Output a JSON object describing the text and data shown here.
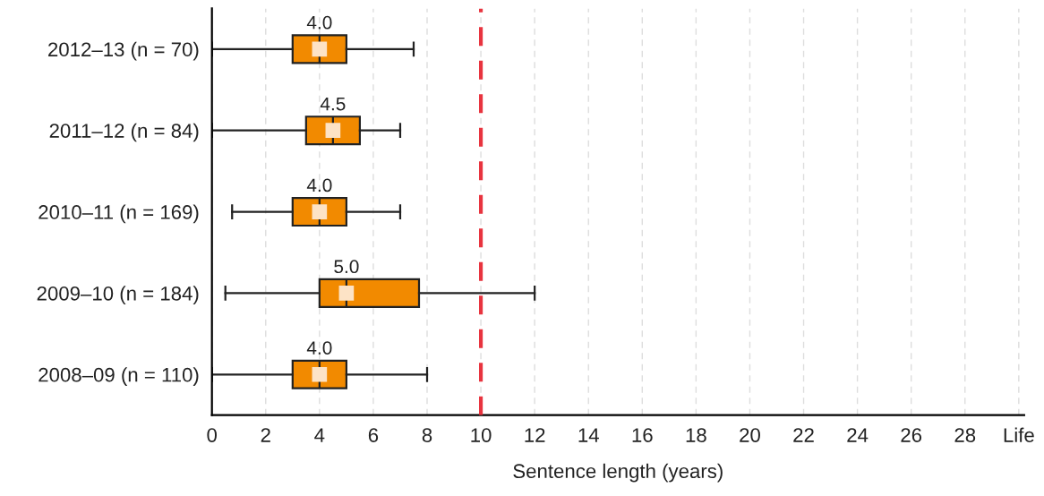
{
  "chart_data": {
    "type": "box",
    "orientation": "horizontal",
    "xlabel": "Sentence length (years)",
    "categories": [
      "2012–13 (n = 70)",
      "2011–12 (n = 84)",
      "2010–11 (n = 169)",
      "2009–10 (n = 184)",
      "2008–09 (n = 110)"
    ],
    "color": "#f28a00",
    "boxes": [
      {
        "low": 0,
        "q1": 3,
        "median": 4,
        "q3": 5,
        "high": 7.5,
        "mean": 4
      },
      {
        "low": 0,
        "q1": 3.5,
        "median": 4.5,
        "q3": 5.5,
        "high": 7,
        "mean": 4.5
      },
      {
        "low": 0.75,
        "q1": 3,
        "median": 4,
        "q3": 5,
        "high": 7,
        "mean": 4
      },
      {
        "low": 0.5,
        "q1": 4,
        "median": 5,
        "q3": 7.7,
        "high": 12,
        "mean": 5
      },
      {
        "low": 0,
        "q1": 3,
        "median": 4,
        "q3": 5,
        "high": 8,
        "mean": 4
      }
    ],
    "value_labels": [
      "4.0",
      "4.5",
      "4.0",
      "5.0",
      "4.0"
    ],
    "xlim": [
      0,
      30.2
    ],
    "xticks": [
      0,
      2,
      4,
      6,
      8,
      10,
      12,
      14,
      16,
      18,
      20,
      22,
      24,
      26,
      28,
      {
        "value": 30,
        "label": "Life"
      }
    ],
    "ref_lines": [
      {
        "axis": "x",
        "value": 10,
        "color": "#e8343f",
        "line_style": "dashed"
      }
    ],
    "grid": "x",
    "marker": "square"
  }
}
